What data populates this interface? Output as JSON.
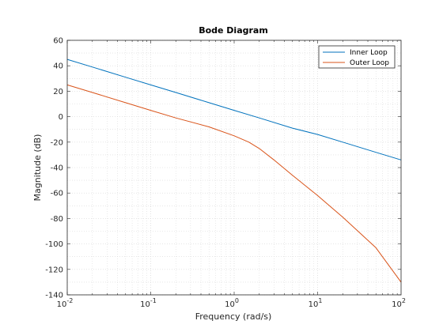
{
  "chart_data": {
    "type": "line",
    "title": "Bode Diagram",
    "xlabel": "Frequency  (rad/s)",
    "ylabel": "Magnitude (dB)",
    "xscale": "log",
    "xlim": [
      0.01,
      100
    ],
    "ylim": [
      -140,
      60
    ],
    "x_ticks": [
      0.01,
      0.1,
      1,
      10,
      100
    ],
    "x_tick_labels": [
      {
        "base": "10",
        "exp": "-2"
      },
      {
        "base": "10",
        "exp": "-1"
      },
      {
        "base": "10",
        "exp": "0"
      },
      {
        "base": "10",
        "exp": "1"
      },
      {
        "base": "10",
        "exp": "2"
      }
    ],
    "y_ticks": [
      -140,
      -120,
      -100,
      -80,
      -60,
      -40,
      -20,
      0,
      20,
      40,
      60
    ],
    "grid": "minor dotted",
    "legend_position": "top-right",
    "series": [
      {
        "name": "Inner Loop",
        "color": "#0072BD",
        "x": [
          0.01,
          0.02,
          0.05,
          0.1,
          0.2,
          0.5,
          1,
          2,
          5,
          10,
          20,
          50,
          100
        ],
        "y": [
          45,
          39,
          31,
          25,
          19,
          11,
          5,
          -1,
          -9,
          -14,
          -20,
          -28,
          -34
        ]
      },
      {
        "name": "Outer Loop",
        "color": "#D95319",
        "x": [
          0.01,
          0.02,
          0.05,
          0.1,
          0.2,
          0.5,
          1,
          1.5,
          2,
          3,
          5,
          10,
          20,
          50,
          100
        ],
        "y": [
          25,
          19,
          11,
          5,
          -1,
          -8,
          -15,
          -20,
          -25,
          -34,
          -46,
          -62,
          -79,
          -103,
          -130
        ]
      }
    ]
  }
}
